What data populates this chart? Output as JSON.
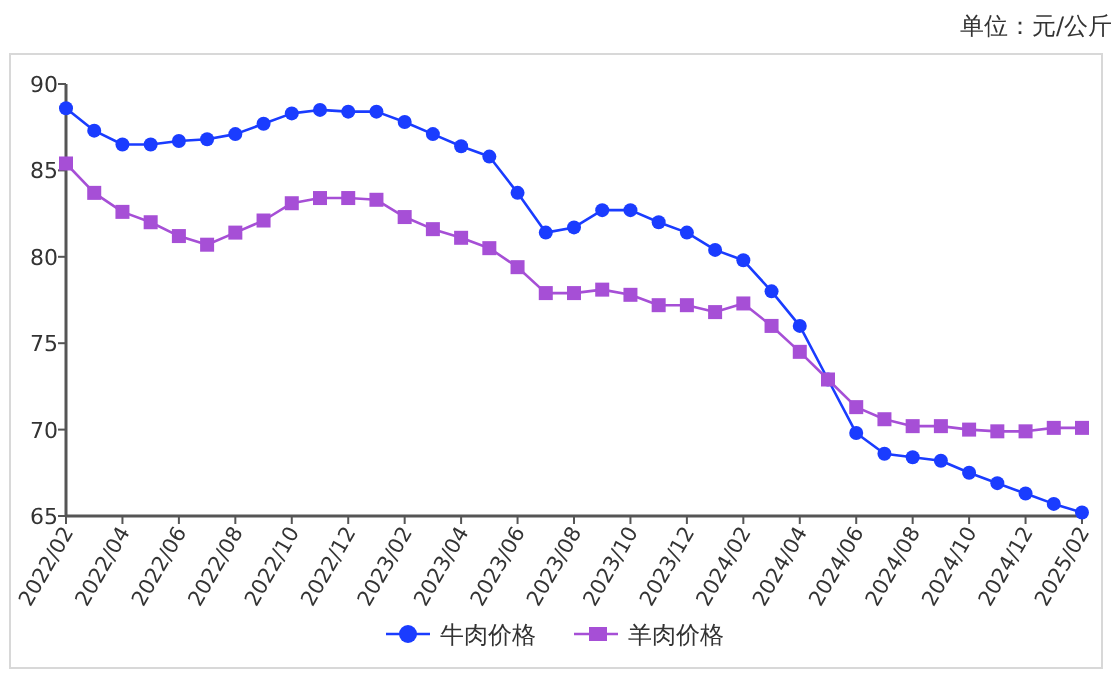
{
  "chart_data": {
    "type": "line",
    "annotations": [
      "单位：元/公斤"
    ],
    "categories": [
      "2022/02",
      null,
      "2022/04",
      null,
      "2022/06",
      null,
      "2022/08",
      null,
      "2022/10",
      null,
      "2022/12",
      null,
      "2023/02",
      null,
      "2023/04",
      null,
      "2023/06",
      null,
      "2023/08",
      null,
      "2023/10",
      null,
      "2023/12",
      null,
      "2024/02",
      null,
      "2024/04",
      null,
      "2024/06",
      null,
      "2024/08",
      null,
      "2024/10",
      null,
      "2024/12",
      null,
      "2025/02"
    ],
    "series": [
      {
        "name": "牛肉价格",
        "color": "#1a3cff",
        "marker": "circle",
        "values": [
          88.6,
          87.3,
          86.5,
          86.5,
          86.7,
          86.8,
          87.1,
          87.7,
          88.3,
          88.5,
          88.4,
          88.4,
          87.8,
          87.1,
          86.4,
          85.8,
          83.7,
          81.4,
          81.7,
          82.7,
          82.7,
          82.0,
          81.4,
          80.4,
          79.8,
          78.0,
          76.0,
          72.9,
          69.8,
          68.6,
          68.4,
          68.2,
          67.5,
          66.9,
          66.3,
          65.7,
          65.2
        ]
      },
      {
        "name": "羊肉价格",
        "color": "#a64fd6",
        "marker": "square",
        "values": [
          85.4,
          83.7,
          82.6,
          82.0,
          81.2,
          80.7,
          81.4,
          82.1,
          83.1,
          83.4,
          83.4,
          83.3,
          82.3,
          81.6,
          81.1,
          80.5,
          79.4,
          77.9,
          77.9,
          78.1,
          77.8,
          77.2,
          77.2,
          76.8,
          77.3,
          76.0,
          74.5,
          72.9,
          71.3,
          70.6,
          70.2,
          70.2,
          70.0,
          69.9,
          69.9,
          70.1,
          70.1
        ]
      }
    ],
    "ylim": [
      65,
      90
    ],
    "yticks": [
      65,
      70,
      75,
      80,
      85,
      90
    ],
    "grid": false,
    "legend": "bottom",
    "line_style": "solid"
  }
}
